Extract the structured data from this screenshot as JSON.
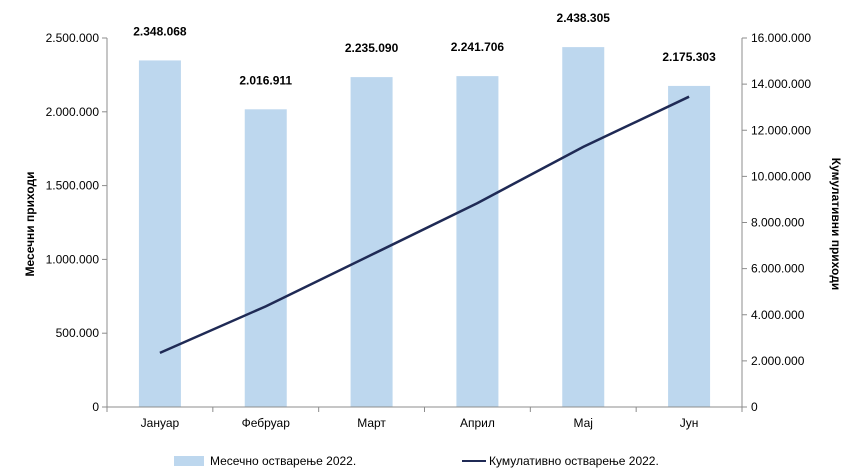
{
  "chart_data": {
    "type": "bar+line",
    "categories": [
      "Јануар",
      "Фебруар",
      "Март",
      "Април",
      "Мај",
      "Јун"
    ],
    "series": [
      {
        "name": "Месечно остварење 2022.",
        "type": "bar",
        "axis": "left",
        "color": "#bdd7ee",
        "values": [
          2348068,
          2016911,
          2235090,
          2241706,
          2438305,
          2175303
        ],
        "value_labels": [
          "2.348.068",
          "2.016.911",
          "2.235.090",
          "2.241.706",
          "2.438.305",
          "2.175.303"
        ]
      },
      {
        "name": "Кумулативно остварење 2022.",
        "type": "line",
        "axis": "right",
        "color": "#1f2a55",
        "values": [
          2348068,
          4364979,
          6600069,
          8841775,
          11280080,
          13455383
        ]
      }
    ],
    "ylabel_left": "Месечни приходи",
    "ylabel_right": "Кумулативни приходи",
    "ylim_left": [
      0,
      2500000
    ],
    "ylim_right": [
      0,
      16000000
    ],
    "yticks_left": [
      "0",
      "500.000",
      "1.000.000",
      "1.500.000",
      "2.000.000",
      "2.500.000"
    ],
    "yticks_right": [
      "0",
      "2.000.000",
      "4.000.000",
      "6.000.000",
      "8.000.000",
      "10.000.000",
      "12.000.000",
      "14.000.000",
      "16.000.000"
    ],
    "grid": false,
    "legend_position": "bottom"
  }
}
